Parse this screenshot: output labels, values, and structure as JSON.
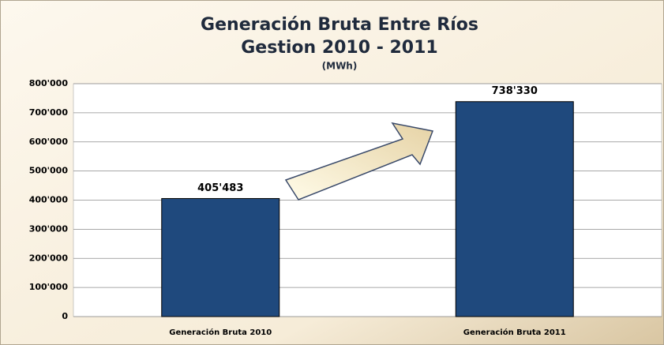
{
  "chart_data": {
    "type": "bar",
    "title": "Generación Bruta Entre Ríos",
    "subtitle": "Gestion 2010 - 2011",
    "unit_label": "(MWh)",
    "categories": [
      "Generación Bruta 2010",
      "Generación Bruta 2011"
    ],
    "values": [
      405483,
      738330
    ],
    "value_labels": [
      "405'483",
      "738'330"
    ],
    "color": "#1f497d",
    "ylim": [
      0,
      800000
    ],
    "yticks": [
      0,
      {
        "value": 100000,
        "label": "100'000"
      },
      {
        "value": 200000,
        "label": "200'000"
      },
      {
        "value": 300000,
        "label": "300'000"
      },
      {
        "value": 400000,
        "label": "400'000"
      },
      {
        "value": 500000,
        "label": "500'000"
      },
      {
        "value": 600000,
        "label": "600'000"
      },
      {
        "value": 700000,
        "label": "700'000"
      },
      {
        "value": 800000,
        "label": "800'000"
      }
    ],
    "grid": true
  }
}
